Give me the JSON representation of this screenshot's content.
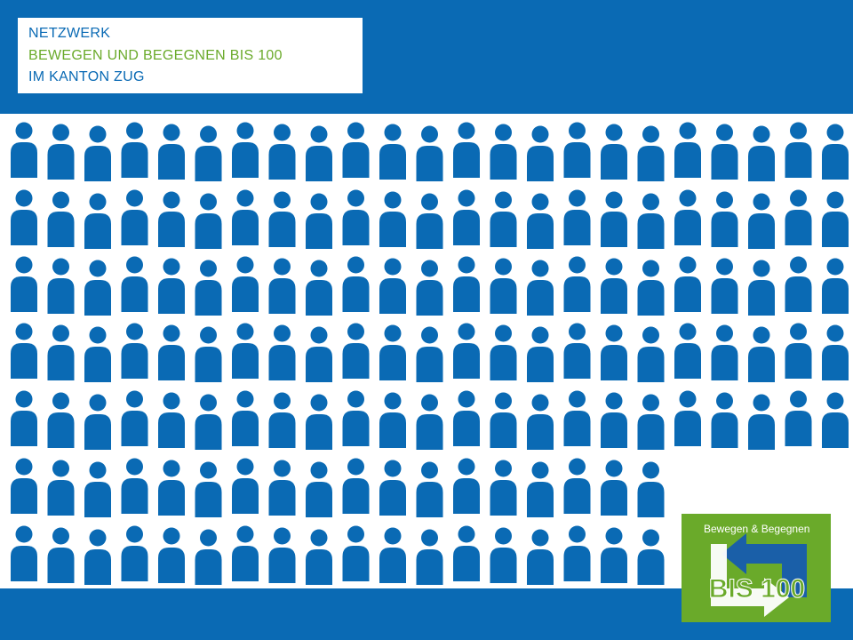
{
  "header": {
    "lines": [
      "NETZWERK",
      "BEWEGEN UND BEGEGNEN BIS 100",
      "IM KANTON ZUG"
    ]
  },
  "logo": {
    "tagline": "Bewegen & Begegnen",
    "mark": "BIS 100"
  }
}
